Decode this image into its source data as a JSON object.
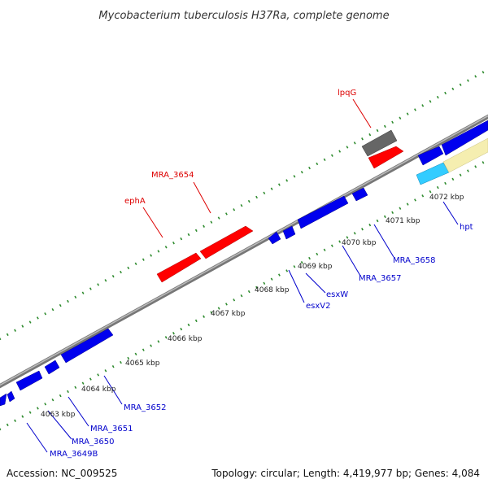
{
  "title": "Mycobacterium tuberculosis H37Ra, complete genome",
  "footer": {
    "accession": "Accession: NC_009525",
    "summary": "Topology: circular; Length: 4,419,977 bp; Genes: 4,084"
  },
  "colors": {
    "backbone": "#888888",
    "tick": "#2e8b2e",
    "forward_gene": "#ff0000",
    "reverse_gene": "#0000ee",
    "pseudo_gene": "#666666",
    "cyan_feature": "#33ccff",
    "cream_feature": "#f5eeb0",
    "forward_label": "#dd0000",
    "reverse_label": "#0000cc"
  },
  "tick_labels": [
    "4063 kbp",
    "4064 kbp",
    "4065 kbp",
    "4066 kbp",
    "4067 kbp",
    "4068 kbp",
    "4069 kbp",
    "4070 kbp",
    "4071 kbp",
    "4072 kbp"
  ],
  "gene_labels": {
    "forward": [
      "lpqG",
      "MRA_3654",
      "ephA"
    ],
    "reverse": [
      "MRA_3649B",
      "MRA_3650",
      "MRA_3651",
      "MRA_3652",
      "esxV2",
      "esxW",
      "MRA_3657",
      "MRA_3658",
      "hpt"
    ]
  }
}
